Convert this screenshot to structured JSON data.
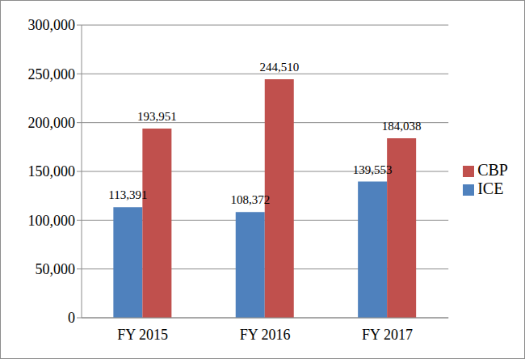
{
  "chart_data": {
    "type": "bar",
    "categories": [
      "FY 2015",
      "FY 2016",
      "FY 2017"
    ],
    "series": [
      {
        "name": "ICE",
        "color": "#4f81bd",
        "values": [
          113391,
          108372,
          139553
        ],
        "value_labels": [
          "113,391",
          "108,372",
          "139,553"
        ]
      },
      {
        "name": "CBP",
        "color": "#c0504d",
        "values": [
          193951,
          244510,
          184038
        ],
        "value_labels": [
          "193,951",
          "244,510",
          "184,038"
        ]
      }
    ],
    "ylim": [
      0,
      300000
    ],
    "yticks": [
      0,
      {
        "value": 50000,
        "label": "50,000"
      },
      {
        "value": 100000,
        "label": "100,000"
      },
      {
        "value": 150000,
        "label": "150,000"
      },
      {
        "value": 200000,
        "label": "200,000"
      },
      {
        "value": 250000,
        "label": "250,000"
      },
      {
        "value": 300000,
        "label": "300,000"
      }
    ],
    "grid": true,
    "legend": "right",
    "data_labels": true
  }
}
